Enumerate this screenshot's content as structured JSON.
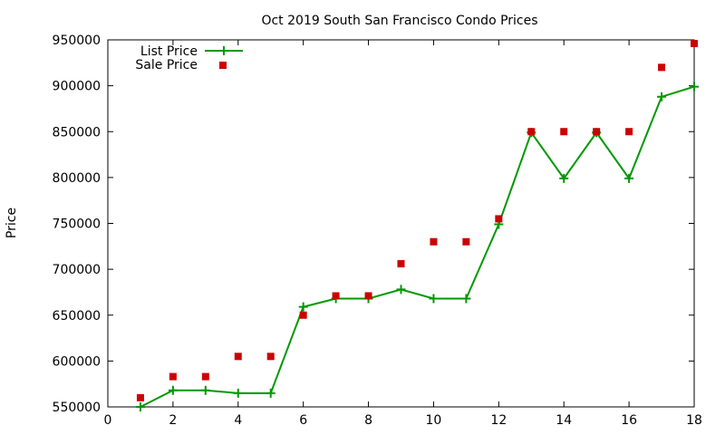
{
  "chart_data": {
    "type": "line",
    "title": "Oct 2019 South San Francisco Condo Prices",
    "xlabel": "",
    "ylabel": "Price",
    "xlim": [
      0,
      18
    ],
    "ylim": [
      550000,
      950000
    ],
    "x_ticks": [
      0,
      2,
      4,
      6,
      8,
      10,
      12,
      14,
      16,
      18
    ],
    "y_ticks": [
      550000,
      600000,
      650000,
      700000,
      750000,
      800000,
      850000,
      900000,
      950000
    ],
    "grid": false,
    "legend_position": "top-left",
    "series": [
      {
        "name": "List Price",
        "style": "line-with-plus-markers",
        "color": "#009900",
        "x": [
          1,
          2,
          3,
          4,
          5,
          6,
          7,
          8,
          9,
          10,
          11,
          12,
          13,
          14,
          15,
          16,
          17,
          18
        ],
        "y": [
          550000,
          568000,
          568000,
          565000,
          565000,
          659000,
          668000,
          668000,
          678000,
          668000,
          668000,
          749000,
          849000,
          799000,
          849000,
          799000,
          888000,
          899000
        ]
      },
      {
        "name": "Sale Price",
        "style": "square-markers",
        "color": "#cc0000",
        "x": [
          1,
          2,
          3,
          4,
          5,
          6,
          7,
          8,
          9,
          10,
          11,
          12,
          13,
          14,
          15,
          16,
          17,
          18
        ],
        "y": [
          560000,
          583000,
          583000,
          605000,
          605000,
          650000,
          671000,
          671000,
          706000,
          730000,
          730000,
          755000,
          850000,
          850000,
          850000,
          850000,
          920000,
          946000
        ]
      }
    ]
  }
}
